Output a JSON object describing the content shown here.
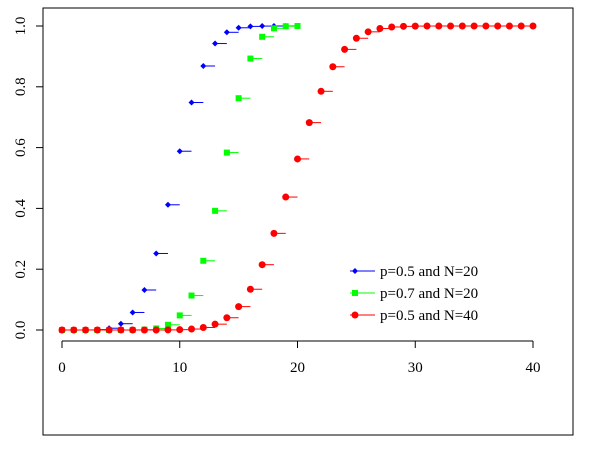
{
  "chart_data": {
    "type": "scatter",
    "title": "",
    "xlabel": "",
    "ylabel": "",
    "xlim": [
      0,
      40
    ],
    "ylim": [
      0,
      1
    ],
    "x_ticks": [
      0,
      10,
      20,
      30,
      40
    ],
    "y_ticks": [
      0.0,
      0.2,
      0.4,
      0.6,
      0.8,
      1.0
    ],
    "x_tick_labels": [
      "0",
      "10",
      "20",
      "30",
      "40"
    ],
    "y_tick_labels": [
      "0.0",
      "0.2",
      "0.4",
      "0.6",
      "0.8",
      "1.0"
    ],
    "grid": false,
    "legend_position": "right",
    "series": [
      {
        "name": "p=0.5 and N=20",
        "color": "#0000ff",
        "marker": "diamond",
        "x": [
          0,
          1,
          2,
          3,
          4,
          5,
          6,
          7,
          8,
          9,
          10,
          11,
          12,
          13,
          14,
          15,
          16,
          17,
          18,
          19,
          20
        ],
        "y": [
          1e-06,
          2e-05,
          0.0002,
          0.0013,
          0.0059,
          0.0207,
          0.0577,
          0.1316,
          0.2517,
          0.4119,
          0.5881,
          0.7483,
          0.8684,
          0.9423,
          0.9793,
          0.9941,
          0.9987,
          0.9998,
          1.0,
          1.0,
          1.0
        ]
      },
      {
        "name": "p=0.7 and N=20",
        "color": "#00ff00",
        "marker": "square",
        "x": [
          0,
          1,
          2,
          3,
          4,
          5,
          6,
          7,
          8,
          9,
          10,
          11,
          12,
          13,
          14,
          15,
          16,
          17,
          18,
          19,
          20
        ],
        "y": [
          0.0,
          0.0,
          0.0,
          0.0,
          0.0,
          1e-05,
          0.0003,
          0.0013,
          0.0051,
          0.0171,
          0.048,
          0.1133,
          0.2277,
          0.392,
          0.5836,
          0.7625,
          0.8929,
          0.9645,
          0.9924,
          0.9992,
          1.0
        ]
      },
      {
        "name": "p=0.5 and N=40",
        "color": "#ff0000",
        "marker": "circle",
        "x": [
          0,
          1,
          2,
          3,
          4,
          5,
          6,
          7,
          8,
          9,
          10,
          11,
          12,
          13,
          14,
          15,
          16,
          17,
          18,
          19,
          20,
          21,
          22,
          23,
          24,
          25,
          26,
          27,
          28,
          29,
          30,
          31,
          32,
          33,
          34,
          35,
          36,
          37,
          38,
          39,
          40
        ],
        "y": [
          0.0,
          0.0,
          0.0,
          0.0,
          0.0,
          0.0,
          0.0,
          0.0,
          0.0001,
          0.0003,
          0.0011,
          0.0032,
          0.0083,
          0.0192,
          0.0403,
          0.0769,
          0.1341,
          0.2148,
          0.3179,
          0.4373,
          0.5627,
          0.6821,
          0.7852,
          0.8659,
          0.9231,
          0.9597,
          0.9808,
          0.9917,
          0.9968,
          0.9989,
          0.9997,
          0.9999,
          1.0,
          1.0,
          1.0,
          1.0,
          1.0,
          1.0,
          1.0,
          1.0,
          1.0
        ]
      }
    ]
  }
}
